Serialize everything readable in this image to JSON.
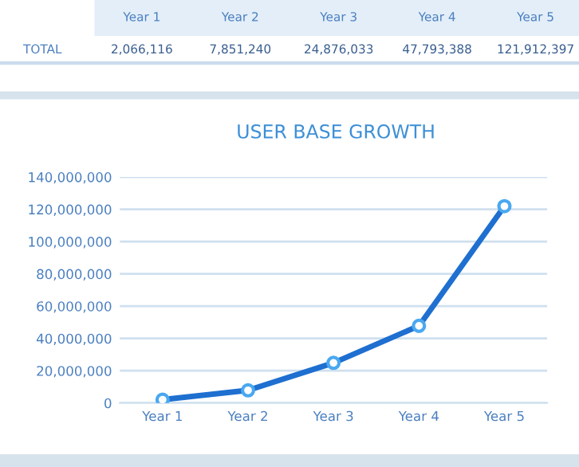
{
  "chart_data": {
    "type": "line",
    "title": "USER BASE GROWTH",
    "categories": [
      "Year 1",
      "Year 2",
      "Year 3",
      "Year 4",
      "Year 5"
    ],
    "series": [
      {
        "name": "TOTAL",
        "color": "#1e6fd0",
        "values": [
          2066116,
          7851240,
          24876033,
          47793388,
          121912397
        ]
      }
    ],
    "value_labels": [
      "2,066,116",
      "7,851,240",
      "24,876,033",
      "47,793,388",
      "121,912,397"
    ],
    "ylim": [
      0,
      140000000
    ],
    "yticks": [
      {
        "value": 0,
        "label": "0"
      },
      {
        "value": 20000000,
        "label": "20,000,000"
      },
      {
        "value": 40000000,
        "label": "40,000,000"
      },
      {
        "value": 60000000,
        "label": "60,000,000"
      },
      {
        "value": 80000000,
        "label": "80,000,000"
      },
      {
        "value": 100000000,
        "label": "100,000,000"
      },
      {
        "value": 120000000,
        "label": "120,000,000"
      },
      {
        "value": 140000000,
        "label": "140,000,000"
      }
    ],
    "grid": "y",
    "marker": "circle",
    "line_style": "solid"
  }
}
